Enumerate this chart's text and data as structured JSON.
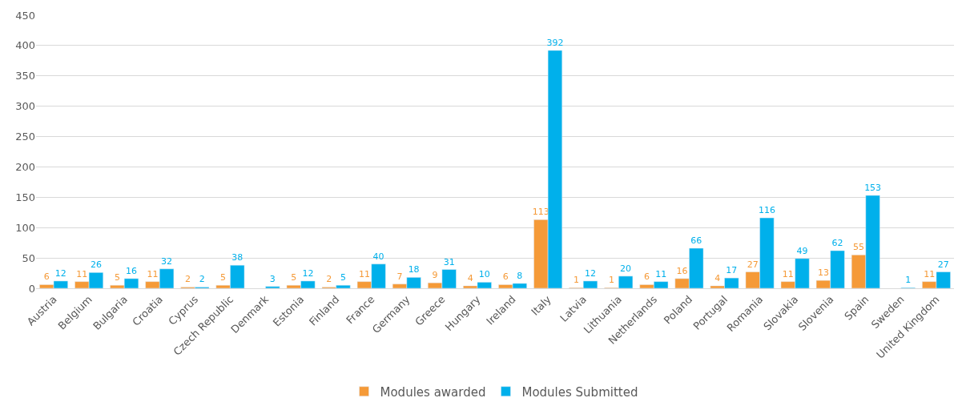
{
  "chart_data": {
    "type": "bar",
    "categories": [
      "Austria",
      "Belgium",
      "Bulgaria",
      "Croatia",
      "Cyprus",
      "Czech Republic",
      "Denmark",
      "Estonia",
      "Finland",
      "France",
      "Germany",
      "Greece",
      "Hungary",
      "Ireland",
      "Italy",
      "Latvia",
      "Lithuania",
      "Netherlands",
      "Poland",
      "Portugal",
      "Romania",
      "Slovakia",
      "Slovenia",
      "Spain",
      "Sweden",
      "United Kingdom"
    ],
    "series": [
      {
        "name": "Modules awarded",
        "color": "#f59a38",
        "values": [
          6,
          11,
          5,
          11,
          2,
          5,
          null,
          5,
          2,
          11,
          7,
          9,
          4,
          6,
          113,
          1,
          1,
          6,
          16,
          4,
          27,
          11,
          13,
          55,
          null,
          11
        ]
      },
      {
        "name": "Modules Submitted",
        "color": "#00b0eb",
        "values": [
          12,
          26,
          16,
          32,
          2,
          38,
          3,
          12,
          5,
          40,
          18,
          31,
          10,
          8,
          392,
          12,
          20,
          11,
          66,
          17,
          116,
          49,
          62,
          153,
          1,
          27
        ]
      }
    ],
    "ylim": [
      0,
      450
    ],
    "yticks": [
      0,
      50,
      100,
      150,
      200,
      250,
      300,
      350,
      400,
      450
    ],
    "grid": "y",
    "legend": "bottom",
    "data_labels": true
  }
}
